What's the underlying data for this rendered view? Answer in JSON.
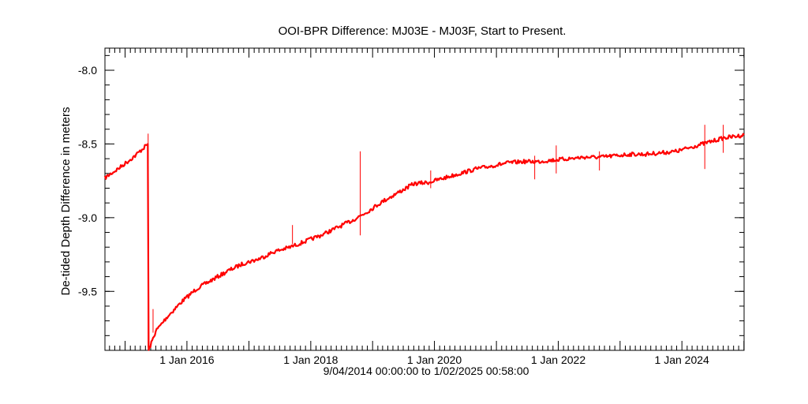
{
  "chart_data": {
    "type": "line",
    "title": "OOI-BPR Difference: MJ03E - MJ03F, Start to Present.",
    "xlabel": "9/04/2014 00:00:00 to  1/02/2025 00:58:00",
    "ylabel": "De-tided Depth Difference in meters",
    "x_range": [
      "2014-09-04",
      "2025-01-02"
    ],
    "ylim": [
      -9.9,
      -7.85
    ],
    "x_ticks": [
      "1 Jan 2016",
      "1 Jan 2018",
      "1 Jan 2020",
      "1 Jan 2022",
      "1 Jan 2024"
    ],
    "y_ticks": [
      "-8.0",
      "-8.5",
      "-9.0",
      "-9.5"
    ],
    "y_tick_values": [
      -8.0,
      -8.5,
      -9.0,
      -9.5
    ],
    "grid": false,
    "colors": {
      "series": "#ff0000",
      "axis": "#000000"
    },
    "series": [
      {
        "points": [
          [
            "2014-09-04",
            -8.73
          ],
          [
            "2014-12-01",
            -8.66
          ],
          [
            "2015-03-01",
            -8.58
          ],
          [
            "2015-05-15",
            -8.5
          ],
          [
            "2015-05-20",
            -9.9
          ],
          [
            "2015-07-01",
            -9.77
          ],
          [
            "2015-09-01",
            -9.68
          ],
          [
            "2015-12-01",
            -9.57
          ],
          [
            "2016-03-01",
            -9.48
          ],
          [
            "2016-06-01",
            -9.42
          ],
          [
            "2016-09-01",
            -9.36
          ],
          [
            "2016-12-01",
            -9.31
          ],
          [
            "2017-03-01",
            -9.28
          ],
          [
            "2017-06-01",
            -9.23
          ],
          [
            "2017-09-01",
            -9.2
          ],
          [
            "2017-12-01",
            -9.16
          ],
          [
            "2018-03-01",
            -9.12
          ],
          [
            "2018-06-01",
            -9.07
          ],
          [
            "2018-09-01",
            -9.02
          ],
          [
            "2018-12-01",
            -8.96
          ],
          [
            "2019-03-01",
            -8.89
          ],
          [
            "2019-06-01",
            -8.83
          ],
          [
            "2019-09-01",
            -8.77
          ],
          [
            "2019-12-01",
            -8.76
          ],
          [
            "2020-03-01",
            -8.73
          ],
          [
            "2020-06-01",
            -8.7
          ],
          [
            "2020-09-01",
            -8.67
          ],
          [
            "2020-12-01",
            -8.65
          ],
          [
            "2021-03-01",
            -8.63
          ],
          [
            "2021-06-01",
            -8.62
          ],
          [
            "2021-09-01",
            -8.62
          ],
          [
            "2021-12-01",
            -8.61
          ],
          [
            "2022-03-01",
            -8.6
          ],
          [
            "2022-06-01",
            -8.59
          ],
          [
            "2022-09-01",
            -8.59
          ],
          [
            "2022-12-01",
            -8.58
          ],
          [
            "2023-03-01",
            -8.57
          ],
          [
            "2023-06-01",
            -8.57
          ],
          [
            "2023-09-01",
            -8.56
          ],
          [
            "2023-12-01",
            -8.55
          ],
          [
            "2024-03-01",
            -8.52
          ],
          [
            "2024-06-01",
            -8.49
          ],
          [
            "2024-09-01",
            -8.46
          ],
          [
            "2025-01-02",
            -8.44
          ]
        ],
        "spikes": [
          [
            "2015-05-17",
            -8.43,
            -9.88
          ],
          [
            "2015-06-15",
            -9.62,
            -9.78
          ],
          [
            "2017-09-15",
            -9.05,
            -9.18
          ],
          [
            "2018-10-20",
            -8.55,
            -9.12
          ],
          [
            "2019-12-10",
            -8.68,
            -8.8
          ],
          [
            "2021-08-15",
            -8.58,
            -8.74
          ],
          [
            "2021-12-20",
            -8.51,
            -8.7
          ],
          [
            "2022-09-01",
            -8.55,
            -8.68
          ],
          [
            "2024-05-15",
            -8.37,
            -8.67
          ],
          [
            "2024-09-01",
            -8.37,
            -8.56
          ]
        ]
      }
    ]
  }
}
